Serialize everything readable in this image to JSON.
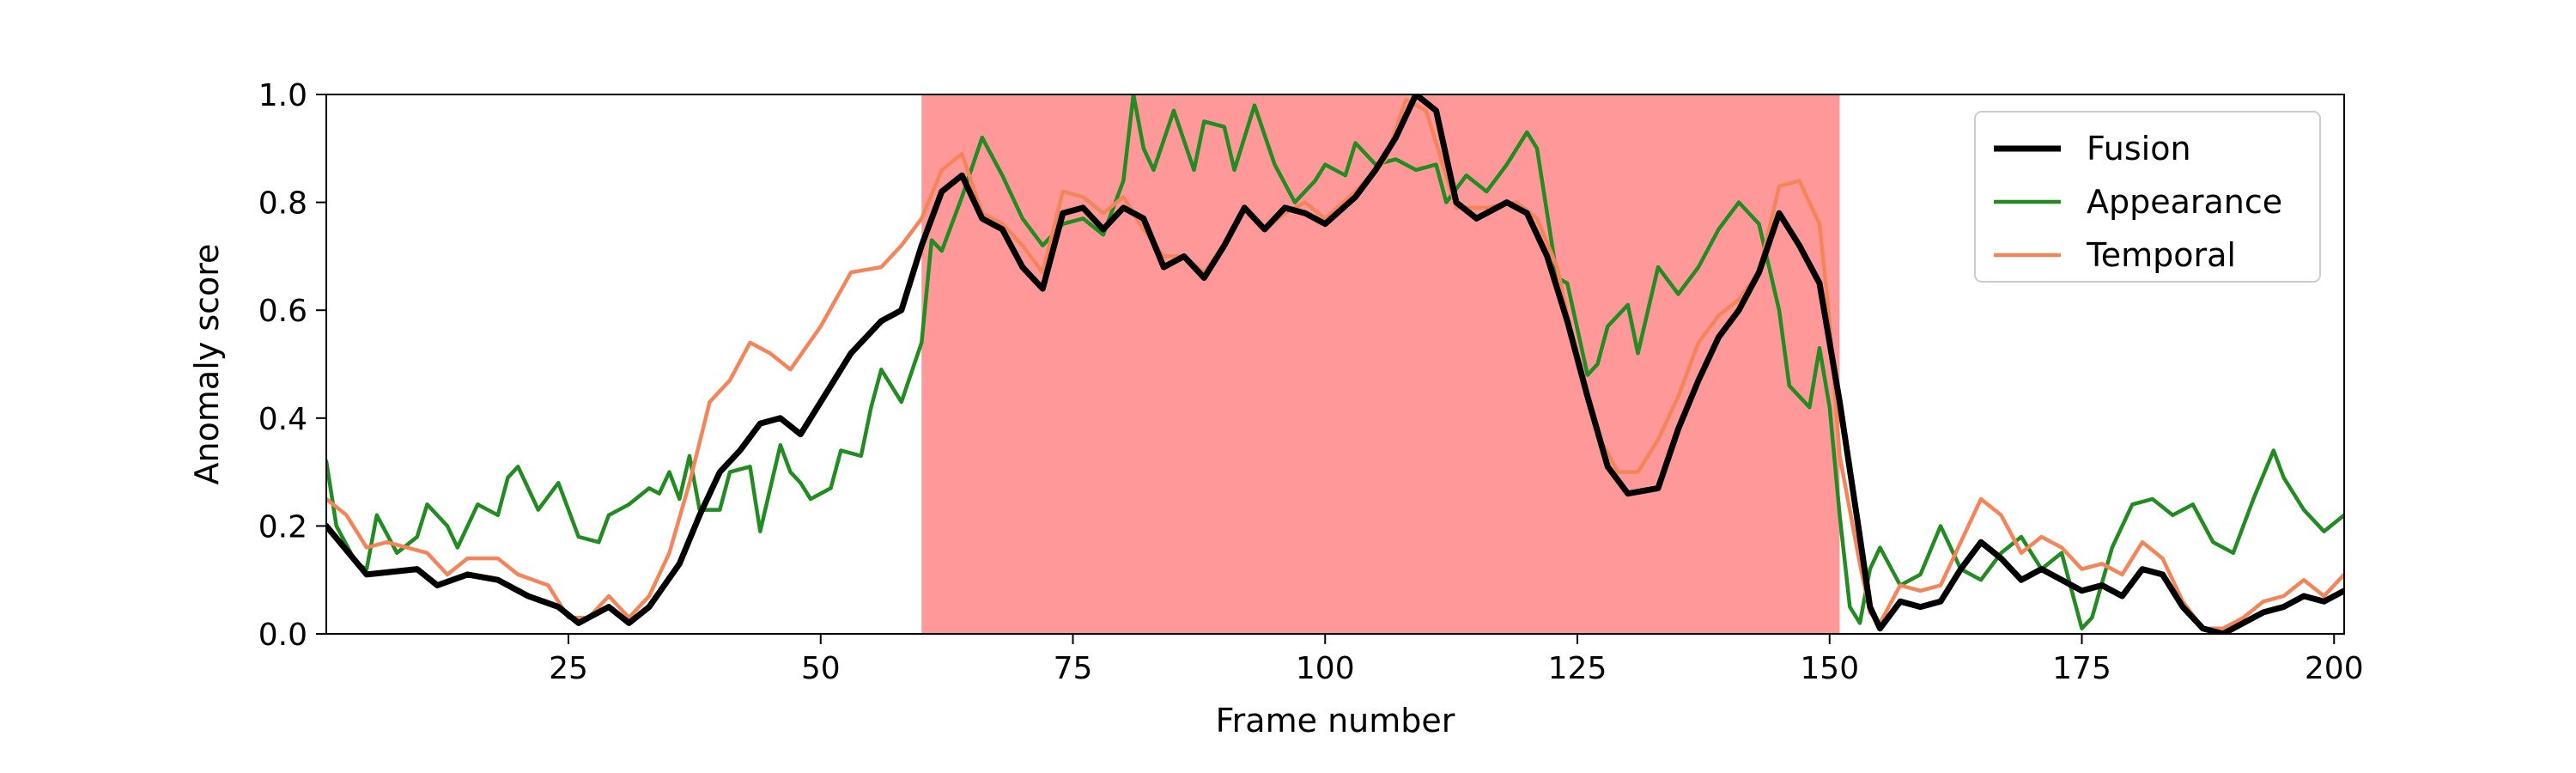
{
  "chart_data": {
    "type": "line",
    "xlabel": "Frame number",
    "ylabel": "Anomaly score",
    "xlim": [
      1,
      201
    ],
    "ylim": [
      0,
      1
    ],
    "x_ticks": [
      25,
      50,
      75,
      100,
      125,
      150,
      175,
      200
    ],
    "y_ticks": [
      0.0,
      0.2,
      0.4,
      0.6,
      0.8,
      1.0
    ],
    "y_tick_labels": [
      "0.0",
      "0.2",
      "0.4",
      "0.6",
      "0.8",
      "1.0"
    ],
    "highlight": {
      "x_start": 60,
      "x_end": 151,
      "color": "#ff9999"
    },
    "legend_position": "top-right",
    "grid": false,
    "series": [
      {
        "name": "Fusion",
        "color": "#000000",
        "points": [
          [
            1,
            0.2
          ],
          [
            5,
            0.11
          ],
          [
            10,
            0.12
          ],
          [
            12,
            0.09
          ],
          [
            15,
            0.11
          ],
          [
            18,
            0.1
          ],
          [
            21,
            0.07
          ],
          [
            24,
            0.05
          ],
          [
            26,
            0.02
          ],
          [
            29,
            0.05
          ],
          [
            31,
            0.02
          ],
          [
            33,
            0.05
          ],
          [
            36,
            0.13
          ],
          [
            38,
            0.22
          ],
          [
            40,
            0.3
          ],
          [
            42,
            0.34
          ],
          [
            44,
            0.39
          ],
          [
            46,
            0.4
          ],
          [
            48,
            0.37
          ],
          [
            50,
            0.43
          ],
          [
            53,
            0.52
          ],
          [
            56,
            0.58
          ],
          [
            58,
            0.6
          ],
          [
            60,
            0.72
          ],
          [
            62,
            0.82
          ],
          [
            64,
            0.85
          ],
          [
            66,
            0.77
          ],
          [
            68,
            0.75
          ],
          [
            70,
            0.68
          ],
          [
            72,
            0.64
          ],
          [
            74,
            0.78
          ],
          [
            76,
            0.79
          ],
          [
            78,
            0.75
          ],
          [
            80,
            0.79
          ],
          [
            82,
            0.77
          ],
          [
            84,
            0.68
          ],
          [
            86,
            0.7
          ],
          [
            88,
            0.66
          ],
          [
            90,
            0.72
          ],
          [
            92,
            0.79
          ],
          [
            94,
            0.75
          ],
          [
            96,
            0.79
          ],
          [
            98,
            0.78
          ],
          [
            100,
            0.76
          ],
          [
            103,
            0.81
          ],
          [
            105,
            0.86
          ],
          [
            107,
            0.92
          ],
          [
            109,
            1.0
          ],
          [
            111,
            0.97
          ],
          [
            113,
            0.8
          ],
          [
            115,
            0.77
          ],
          [
            118,
            0.8
          ],
          [
            120,
            0.78
          ],
          [
            122,
            0.7
          ],
          [
            124,
            0.58
          ],
          [
            126,
            0.44
          ],
          [
            128,
            0.31
          ],
          [
            130,
            0.26
          ],
          [
            133,
            0.27
          ],
          [
            135,
            0.38
          ],
          [
            137,
            0.47
          ],
          [
            139,
            0.55
          ],
          [
            141,
            0.6
          ],
          [
            143,
            0.67
          ],
          [
            145,
            0.78
          ],
          [
            147,
            0.72
          ],
          [
            149,
            0.65
          ],
          [
            151,
            0.43
          ],
          [
            153,
            0.18
          ],
          [
            154,
            0.05
          ],
          [
            155,
            0.01
          ],
          [
            157,
            0.06
          ],
          [
            159,
            0.05
          ],
          [
            161,
            0.06
          ],
          [
            163,
            0.12
          ],
          [
            165,
            0.17
          ],
          [
            167,
            0.14
          ],
          [
            169,
            0.1
          ],
          [
            171,
            0.12
          ],
          [
            173,
            0.1
          ],
          [
            175,
            0.08
          ],
          [
            177,
            0.09
          ],
          [
            179,
            0.07
          ],
          [
            181,
            0.12
          ],
          [
            183,
            0.11
          ],
          [
            185,
            0.05
          ],
          [
            187,
            0.01
          ],
          [
            189,
            0.0
          ],
          [
            191,
            0.02
          ],
          [
            193,
            0.04
          ],
          [
            195,
            0.05
          ],
          [
            197,
            0.07
          ],
          [
            199,
            0.06
          ],
          [
            201,
            0.08
          ]
        ]
      },
      {
        "name": "Appearance",
        "color": "#228b22",
        "points": [
          [
            1,
            0.32
          ],
          [
            2,
            0.2
          ],
          [
            4,
            0.13
          ],
          [
            5,
            0.12
          ],
          [
            6,
            0.22
          ],
          [
            8,
            0.15
          ],
          [
            10,
            0.18
          ],
          [
            11,
            0.24
          ],
          [
            13,
            0.2
          ],
          [
            14,
            0.16
          ],
          [
            16,
            0.24
          ],
          [
            18,
            0.22
          ],
          [
            19,
            0.29
          ],
          [
            20,
            0.31
          ],
          [
            22,
            0.23
          ],
          [
            24,
            0.28
          ],
          [
            26,
            0.18
          ],
          [
            28,
            0.17
          ],
          [
            29,
            0.22
          ],
          [
            31,
            0.24
          ],
          [
            33,
            0.27
          ],
          [
            34,
            0.26
          ],
          [
            35,
            0.3
          ],
          [
            36,
            0.25
          ],
          [
            37,
            0.33
          ],
          [
            38,
            0.23
          ],
          [
            40,
            0.23
          ],
          [
            41,
            0.3
          ],
          [
            43,
            0.31
          ],
          [
            44,
            0.19
          ],
          [
            46,
            0.35
          ],
          [
            47,
            0.3
          ],
          [
            48,
            0.28
          ],
          [
            49,
            0.25
          ],
          [
            51,
            0.27
          ],
          [
            52,
            0.34
          ],
          [
            54,
            0.33
          ],
          [
            55,
            0.42
          ],
          [
            56,
            0.49
          ],
          [
            58,
            0.43
          ],
          [
            60,
            0.54
          ],
          [
            61,
            0.73
          ],
          [
            62,
            0.71
          ],
          [
            64,
            0.81
          ],
          [
            66,
            0.92
          ],
          [
            68,
            0.85
          ],
          [
            70,
            0.77
          ],
          [
            72,
            0.72
          ],
          [
            74,
            0.76
          ],
          [
            76,
            0.77
          ],
          [
            78,
            0.74
          ],
          [
            80,
            0.84
          ],
          [
            81,
            1.0
          ],
          [
            82,
            0.9
          ],
          [
            83,
            0.86
          ],
          [
            85,
            0.97
          ],
          [
            87,
            0.86
          ],
          [
            88,
            0.95
          ],
          [
            90,
            0.94
          ],
          [
            91,
            0.86
          ],
          [
            93,
            0.98
          ],
          [
            95,
            0.87
          ],
          [
            97,
            0.8
          ],
          [
            99,
            0.84
          ],
          [
            100,
            0.87
          ],
          [
            102,
            0.85
          ],
          [
            103,
            0.91
          ],
          [
            105,
            0.87
          ],
          [
            107,
            0.88
          ],
          [
            109,
            0.86
          ],
          [
            111,
            0.87
          ],
          [
            112,
            0.8
          ],
          [
            114,
            0.85
          ],
          [
            116,
            0.82
          ],
          [
            118,
            0.87
          ],
          [
            120,
            0.93
          ],
          [
            121,
            0.9
          ],
          [
            123,
            0.66
          ],
          [
            124,
            0.65
          ],
          [
            126,
            0.48
          ],
          [
            127,
            0.5
          ],
          [
            128,
            0.57
          ],
          [
            130,
            0.61
          ],
          [
            131,
            0.52
          ],
          [
            133,
            0.68
          ],
          [
            135,
            0.63
          ],
          [
            137,
            0.68
          ],
          [
            139,
            0.75
          ],
          [
            141,
            0.8
          ],
          [
            143,
            0.76
          ],
          [
            145,
            0.6
          ],
          [
            146,
            0.46
          ],
          [
            148,
            0.42
          ],
          [
            149,
            0.53
          ],
          [
            150,
            0.42
          ],
          [
            151,
            0.22
          ],
          [
            152,
            0.05
          ],
          [
            153,
            0.02
          ],
          [
            154,
            0.12
          ],
          [
            155,
            0.16
          ],
          [
            157,
            0.09
          ],
          [
            159,
            0.11
          ],
          [
            161,
            0.2
          ],
          [
            163,
            0.12
          ],
          [
            165,
            0.1
          ],
          [
            167,
            0.15
          ],
          [
            169,
            0.18
          ],
          [
            171,
            0.12
          ],
          [
            173,
            0.15
          ],
          [
            175,
            0.01
          ],
          [
            176,
            0.03
          ],
          [
            178,
            0.16
          ],
          [
            180,
            0.24
          ],
          [
            182,
            0.25
          ],
          [
            184,
            0.22
          ],
          [
            186,
            0.24
          ],
          [
            188,
            0.17
          ],
          [
            190,
            0.15
          ],
          [
            192,
            0.25
          ],
          [
            194,
            0.34
          ],
          [
            195,
            0.29
          ],
          [
            197,
            0.23
          ],
          [
            199,
            0.19
          ],
          [
            201,
            0.22
          ]
        ]
      },
      {
        "name": "Temporal",
        "color": "#f4855a",
        "points": [
          [
            1,
            0.25
          ],
          [
            3,
            0.22
          ],
          [
            5,
            0.16
          ],
          [
            7,
            0.17
          ],
          [
            9,
            0.16
          ],
          [
            11,
            0.15
          ],
          [
            13,
            0.11
          ],
          [
            15,
            0.14
          ],
          [
            18,
            0.14
          ],
          [
            20,
            0.11
          ],
          [
            23,
            0.09
          ],
          [
            25,
            0.03
          ],
          [
            27,
            0.03
          ],
          [
            29,
            0.07
          ],
          [
            31,
            0.03
          ],
          [
            33,
            0.07
          ],
          [
            35,
            0.15
          ],
          [
            37,
            0.28
          ],
          [
            39,
            0.43
          ],
          [
            41,
            0.47
          ],
          [
            43,
            0.54
          ],
          [
            45,
            0.52
          ],
          [
            47,
            0.49
          ],
          [
            50,
            0.57
          ],
          [
            53,
            0.67
          ],
          [
            56,
            0.68
          ],
          [
            58,
            0.72
          ],
          [
            60,
            0.77
          ],
          [
            62,
            0.86
          ],
          [
            64,
            0.89
          ],
          [
            66,
            0.78
          ],
          [
            68,
            0.76
          ],
          [
            70,
            0.72
          ],
          [
            72,
            0.67
          ],
          [
            74,
            0.82
          ],
          [
            76,
            0.81
          ],
          [
            78,
            0.78
          ],
          [
            80,
            0.81
          ],
          [
            82,
            0.75
          ],
          [
            84,
            0.7
          ],
          [
            86,
            0.7
          ],
          [
            88,
            0.67
          ],
          [
            90,
            0.72
          ],
          [
            92,
            0.79
          ],
          [
            94,
            0.75
          ],
          [
            96,
            0.78
          ],
          [
            98,
            0.8
          ],
          [
            100,
            0.77
          ],
          [
            103,
            0.82
          ],
          [
            106,
            0.88
          ],
          [
            108,
            0.99
          ],
          [
            110,
            0.97
          ],
          [
            113,
            0.79
          ],
          [
            116,
            0.79
          ],
          [
            119,
            0.8
          ],
          [
            121,
            0.77
          ],
          [
            123,
            0.68
          ],
          [
            125,
            0.5
          ],
          [
            127,
            0.37
          ],
          [
            129,
            0.3
          ],
          [
            131,
            0.3
          ],
          [
            133,
            0.36
          ],
          [
            135,
            0.44
          ],
          [
            137,
            0.54
          ],
          [
            139,
            0.59
          ],
          [
            141,
            0.62
          ],
          [
            143,
            0.67
          ],
          [
            145,
            0.83
          ],
          [
            147,
            0.84
          ],
          [
            149,
            0.76
          ],
          [
            150,
            0.58
          ],
          [
            151,
            0.33
          ],
          [
            153,
            0.13
          ],
          [
            154,
            0.04
          ],
          [
            155,
            0.02
          ],
          [
            157,
            0.09
          ],
          [
            159,
            0.08
          ],
          [
            161,
            0.09
          ],
          [
            163,
            0.17
          ],
          [
            165,
            0.25
          ],
          [
            167,
            0.22
          ],
          [
            169,
            0.15
          ],
          [
            171,
            0.18
          ],
          [
            173,
            0.16
          ],
          [
            175,
            0.12
          ],
          [
            177,
            0.13
          ],
          [
            179,
            0.11
          ],
          [
            181,
            0.17
          ],
          [
            183,
            0.14
          ],
          [
            185,
            0.06
          ],
          [
            187,
            0.01
          ],
          [
            189,
            0.01
          ],
          [
            191,
            0.03
          ],
          [
            193,
            0.06
          ],
          [
            195,
            0.07
          ],
          [
            197,
            0.1
          ],
          [
            199,
            0.07
          ],
          [
            201,
            0.11
          ]
        ]
      }
    ]
  }
}
